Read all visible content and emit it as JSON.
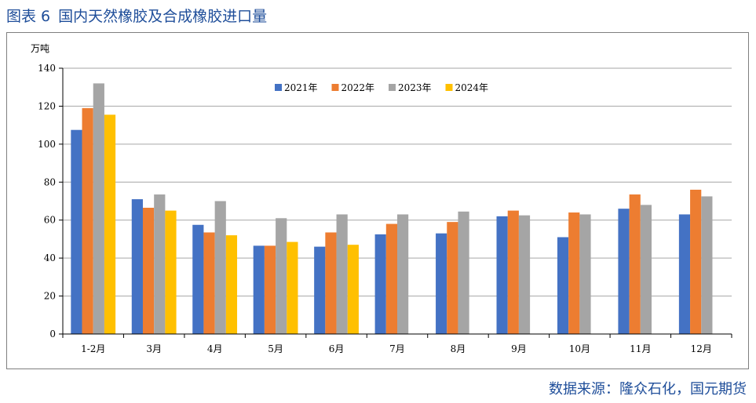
{
  "figure": {
    "label": "图表 6",
    "title": "国内天然橡胶及合成橡胶进口量"
  },
  "source": "数据来源：隆众石化，国元期货",
  "colors": {
    "title": "#1f4e9a",
    "series": [
      "#4472c4",
      "#ed7d31",
      "#a5a5a5",
      "#ffc000"
    ],
    "grid": "#a6a6a6",
    "axis": "#000000"
  },
  "chart_data": {
    "type": "bar",
    "unit_label": "万吨",
    "categories": [
      "1-2月",
      "3月",
      "4月",
      "5月",
      "6月",
      "7月",
      "8月",
      "9月",
      "10月",
      "11月",
      "12月"
    ],
    "series": [
      {
        "name": "2021年",
        "values": [
          107.5,
          71,
          57.5,
          46.5,
          46,
          52.5,
          53,
          62,
          51,
          66,
          63
        ]
      },
      {
        "name": "2022年",
        "values": [
          119,
          66.5,
          53.5,
          46.5,
          53.5,
          58,
          59,
          65,
          64,
          73.5,
          76
        ]
      },
      {
        "name": "2023年",
        "values": [
          132,
          73.5,
          70,
          61,
          63,
          63,
          64.5,
          62.5,
          63,
          68,
          72.5
        ]
      },
      {
        "name": "2024年",
        "values": [
          115.5,
          65,
          52,
          48.5,
          47,
          null,
          null,
          null,
          null,
          null,
          null
        ]
      }
    ],
    "ylim": [
      0,
      140
    ],
    "yticks": [
      0,
      20,
      40,
      60,
      80,
      100,
      120,
      140
    ],
    "grid": true,
    "legend": "top-center"
  }
}
